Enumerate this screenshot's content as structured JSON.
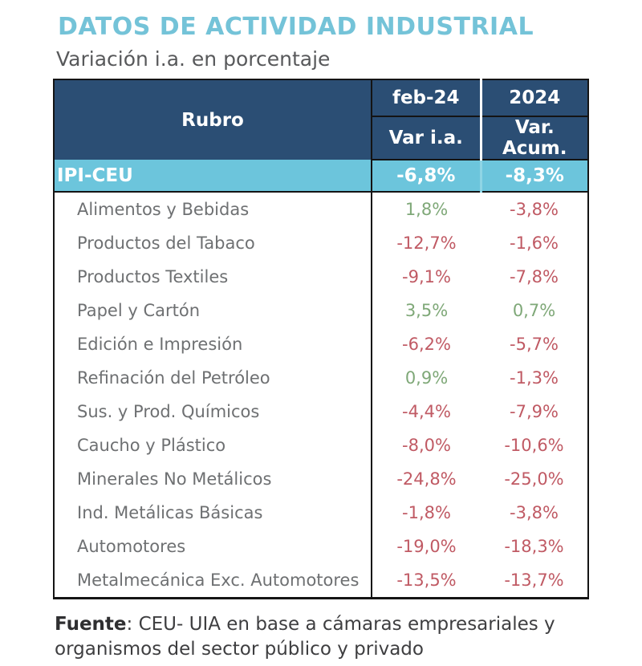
{
  "title": "DATOS DE ACTIVIDAD INDUSTRIAL",
  "subtitle": "Variación i.a. en porcentaje",
  "colors": {
    "title_accent": "#74C3D8",
    "header_bg": "#2B4E74",
    "summary_bg": "#6CC5DC",
    "positive": "#7FA878",
    "negative": "#C05A64",
    "label_gray": "#6E7072",
    "border": "#141414"
  },
  "table": {
    "header": {
      "rubro": "Rubro",
      "period1": "feb-24",
      "period2": "2024",
      "measure1": "Var i.a.",
      "measure2": "Var. Acum."
    },
    "summary": {
      "label": "IPI-CEU",
      "ia": "-6,8%",
      "acum": "-8,3%"
    },
    "rows": [
      {
        "label": "Alimentos y Bebidas",
        "ia": "1,8%",
        "ia_sign": "pos",
        "acum": "-3,8%",
        "acum_sign": "neg"
      },
      {
        "label": "Productos del Tabaco",
        "ia": "-12,7%",
        "ia_sign": "neg",
        "acum": "-1,6%",
        "acum_sign": "neg"
      },
      {
        "label": "Productos Textiles",
        "ia": "-9,1%",
        "ia_sign": "neg",
        "acum": "-7,8%",
        "acum_sign": "neg"
      },
      {
        "label": "Papel y Cartón",
        "ia": "3,5%",
        "ia_sign": "pos",
        "acum": "0,7%",
        "acum_sign": "pos"
      },
      {
        "label": "Edición e Impresión",
        "ia": "-6,2%",
        "ia_sign": "neg",
        "acum": "-5,7%",
        "acum_sign": "neg"
      },
      {
        "label": "Refinación del Petróleo",
        "ia": "0,9%",
        "ia_sign": "pos",
        "acum": "-1,3%",
        "acum_sign": "neg"
      },
      {
        "label": "Sus. y Prod. Químicos",
        "ia": "-4,4%",
        "ia_sign": "neg",
        "acum": "-7,9%",
        "acum_sign": "neg"
      },
      {
        "label": "Caucho y Plástico",
        "ia": "-8,0%",
        "ia_sign": "neg",
        "acum": "-10,6%",
        "acum_sign": "neg"
      },
      {
        "label": "Minerales No Metálicos",
        "ia": "-24,8%",
        "ia_sign": "neg",
        "acum": "-25,0%",
        "acum_sign": "neg"
      },
      {
        "label": "Ind. Metálicas Básicas",
        "ia": "-1,8%",
        "ia_sign": "neg",
        "acum": "-3,8%",
        "acum_sign": "neg"
      },
      {
        "label": "Automotores",
        "ia": "-19,0%",
        "ia_sign": "neg",
        "acum": "-18,3%",
        "acum_sign": "neg"
      },
      {
        "label": "Metalmecánica Exc. Automotores",
        "ia": "-13,5%",
        "ia_sign": "neg",
        "acum": "-13,7%",
        "acum_sign": "neg"
      }
    ]
  },
  "footer": {
    "source_label": "Fuente",
    "source_text": ": CEU- UIA en base a cámaras empresariales y organismos del sector público y privado"
  },
  "chart_data": {
    "type": "table",
    "title": "DATOS DE ACTIVIDAD INDUSTRIAL",
    "subtitle": "Variación i.a. en porcentaje",
    "columns": [
      "Rubro",
      "feb-24 Var i.a. (%)",
      "2024 Var. Acum. (%)"
    ],
    "rows": [
      [
        "IPI-CEU",
        -6.8,
        -8.3
      ],
      [
        "Alimentos y Bebidas",
        1.8,
        -3.8
      ],
      [
        "Productos del Tabaco",
        -12.7,
        -1.6
      ],
      [
        "Productos Textiles",
        -9.1,
        -7.8
      ],
      [
        "Papel y Cartón",
        3.5,
        0.7
      ],
      [
        "Edición e Impresión",
        -6.2,
        -5.7
      ],
      [
        "Refinación del Petróleo",
        0.9,
        -1.3
      ],
      [
        "Sus. y Prod. Químicos",
        -4.4,
        -7.9
      ],
      [
        "Caucho y Plástico",
        -8.0,
        -10.6
      ],
      [
        "Minerales No Metálicos",
        -24.8,
        -25.0
      ],
      [
        "Ind. Metálicas Básicas",
        -1.8,
        -3.8
      ],
      [
        "Automotores",
        -19.0,
        -18.3
      ],
      [
        "Metalmecánica Exc. Automotores",
        -13.5,
        -13.7
      ]
    ]
  }
}
